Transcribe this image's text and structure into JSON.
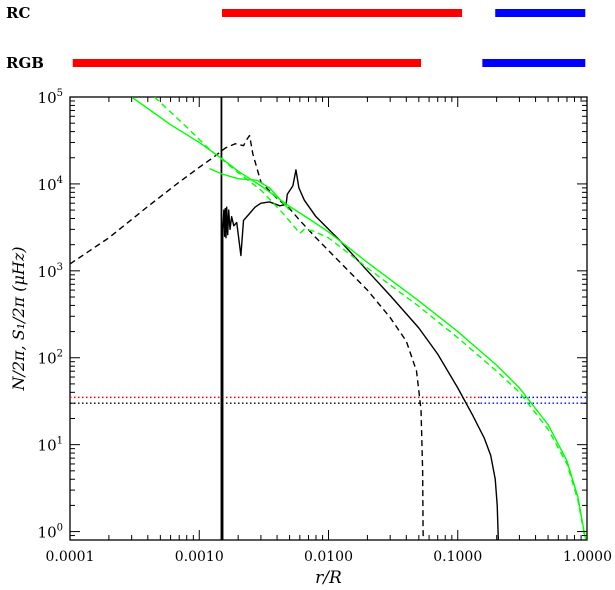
{
  "chart_data": {
    "type": "line",
    "xlabel": "r/R",
    "ylabel": "N/2π, S₁/2π (μHz)",
    "xscale": "log",
    "yscale": "log",
    "xlim": [
      0.0001,
      1.0
    ],
    "ylim": [
      0.8,
      100000
    ],
    "x_ticks": [
      "0.0001",
      "0.0010",
      "0.0100",
      "0.1000",
      "1.0000"
    ],
    "y_ticks": [
      {
        "base": "10",
        "exp": "0"
      },
      {
        "base": "10",
        "exp": "1"
      },
      {
        "base": "10",
        "exp": "2"
      },
      {
        "base": "10",
        "exp": "3"
      },
      {
        "base": "10",
        "exp": "4"
      },
      {
        "base": "10",
        "exp": "5"
      }
    ],
    "bars": [
      {
        "label": "RC",
        "segments": [
          {
            "x0": 0.0015,
            "x1": 0.108,
            "color": "#ff0000"
          },
          {
            "x0": 0.195,
            "x1": 0.97,
            "color": "#0000ff"
          }
        ]
      },
      {
        "label": "RGB",
        "segments": [
          {
            "x0": 0.000105,
            "x1": 0.052,
            "color": "#ff0000"
          },
          {
            "x0": 0.155,
            "x1": 0.97,
            "color": "#0000ff"
          }
        ]
      }
    ],
    "hlines": [
      {
        "y": 35,
        "color": "#ff0000",
        "x0": 0.0001,
        "x1": 0.15,
        "style": "dotted"
      },
      {
        "y": 30,
        "color": "#000000",
        "x0": 0.0001,
        "x1": 0.15,
        "style": "dotted"
      },
      {
        "y": 35,
        "color": "#0000ff",
        "x0": 0.15,
        "x1": 1.0,
        "style": "dotted"
      },
      {
        "y": 30,
        "color": "#0000ff",
        "x0": 0.15,
        "x1": 1.0,
        "style": "dotted"
      }
    ],
    "series": [
      {
        "color": "#000000",
        "dash": "solid",
        "points": [
          [
            0.00148,
            0.8
          ],
          [
            0.00148,
            105000
          ],
          [
            0.00149,
            105000
          ],
          [
            0.00149,
            0.8
          ],
          [
            0.00152,
            0.8
          ],
          [
            0.00152,
            3000
          ],
          [
            0.00155,
            5000
          ],
          [
            0.00157,
            2500
          ],
          [
            0.00159,
            5200
          ],
          [
            0.00161,
            2400
          ],
          [
            0.00163,
            5400
          ],
          [
            0.00166,
            2600
          ],
          [
            0.00169,
            5000
          ],
          [
            0.00173,
            3000
          ],
          [
            0.00178,
            4200
          ],
          [
            0.00185,
            3300
          ],
          [
            0.00195,
            3600
          ],
          [
            0.0021,
            1500
          ],
          [
            0.0022,
            3800
          ],
          [
            0.0024,
            4400
          ],
          [
            0.0027,
            5400
          ],
          [
            0.003,
            6000
          ],
          [
            0.0035,
            6200
          ],
          [
            0.0042,
            5600
          ],
          [
            0.0047,
            5800
          ],
          [
            0.0048,
            7600
          ],
          [
            0.0053,
            9500
          ],
          [
            0.0056,
            14500
          ],
          [
            0.0059,
            9000
          ],
          [
            0.0065,
            6500
          ],
          [
            0.008,
            4200
          ],
          [
            0.012,
            2300
          ],
          [
            0.02,
            1000
          ],
          [
            0.03,
            520
          ],
          [
            0.05,
            220
          ],
          [
            0.07,
            110
          ],
          [
            0.1,
            45
          ],
          [
            0.13,
            22
          ],
          [
            0.16,
            12
          ],
          [
            0.18,
            7.5
          ],
          [
            0.195,
            4
          ],
          [
            0.202,
            2
          ],
          [
            0.206,
            0.8
          ]
        ]
      },
      {
        "color": "#000000",
        "dash": "dashed",
        "points": [
          [
            0.0001,
            1200
          ],
          [
            0.0002,
            2400
          ],
          [
            0.0004,
            5500
          ],
          [
            0.0007,
            10500
          ],
          [
            0.001,
            15500
          ],
          [
            0.0013,
            20500
          ],
          [
            0.0016,
            26000
          ],
          [
            0.0019,
            29000
          ],
          [
            0.0022,
            27500
          ],
          [
            0.00235,
            33000
          ],
          [
            0.00245,
            36000
          ],
          [
            0.0026,
            22000
          ],
          [
            0.003,
            10500
          ],
          [
            0.004,
            6800
          ],
          [
            0.005,
            5200
          ],
          [
            0.006,
            3800
          ],
          [
            0.008,
            2400
          ],
          [
            0.012,
            1300
          ],
          [
            0.02,
            600
          ],
          [
            0.03,
            290
          ],
          [
            0.04,
            155
          ],
          [
            0.048,
            70
          ],
          [
            0.052,
            25
          ],
          [
            0.0535,
            5
          ],
          [
            0.054,
            0.8
          ]
        ]
      },
      {
        "color": "#00ff00",
        "dash": "solid",
        "points": [
          [
            0.0003,
            100000
          ],
          [
            0.0006,
            48000
          ],
          [
            0.001,
            30000
          ],
          [
            0.0015,
            19500
          ],
          [
            0.002,
            14000
          ],
          [
            0.003,
            9500
          ],
          [
            0.005,
            5500
          ],
          [
            0.007,
            4000
          ],
          [
            0.01,
            2800
          ],
          [
            0.02,
            1250
          ],
          [
            0.05,
            450
          ],
          [
            0.1,
            200
          ],
          [
            0.2,
            82
          ],
          [
            0.3,
            45
          ],
          [
            0.5,
            17
          ],
          [
            0.7,
            6.5
          ],
          [
            0.85,
            2.5
          ],
          [
            0.95,
            1
          ],
          [
            0.98,
            0.8
          ]
        ]
      },
      {
        "color": "#00ff00",
        "dash": "dashed",
        "points": [
          [
            0.00045,
            100000
          ],
          [
            0.0008,
            45000
          ],
          [
            0.0012,
            25000
          ],
          [
            0.002,
            13500
          ],
          [
            0.003,
            8500
          ],
          [
            0.0045,
            4500
          ],
          [
            0.006,
            2700
          ],
          [
            0.0065,
            3000
          ],
          [
            0.0075,
            2900
          ],
          [
            0.01,
            2400
          ],
          [
            0.02,
            1080
          ],
          [
            0.05,
            390
          ],
          [
            0.1,
            170
          ],
          [
            0.2,
            70
          ],
          [
            0.3,
            40
          ],
          [
            0.5,
            15
          ],
          [
            0.7,
            6
          ],
          [
            0.85,
            2.3
          ],
          [
            0.95,
            0.95
          ],
          [
            0.98,
            0.8
          ]
        ]
      },
      {
        "color": "#00ff00",
        "dash": "solid",
        "points": [
          [
            0.0012,
            15000
          ],
          [
            0.0015,
            13000
          ],
          [
            0.002,
            11500
          ],
          [
            0.0028,
            11000
          ],
          [
            0.0035,
            9000
          ],
          [
            0.005,
            5000
          ]
        ]
      }
    ]
  }
}
